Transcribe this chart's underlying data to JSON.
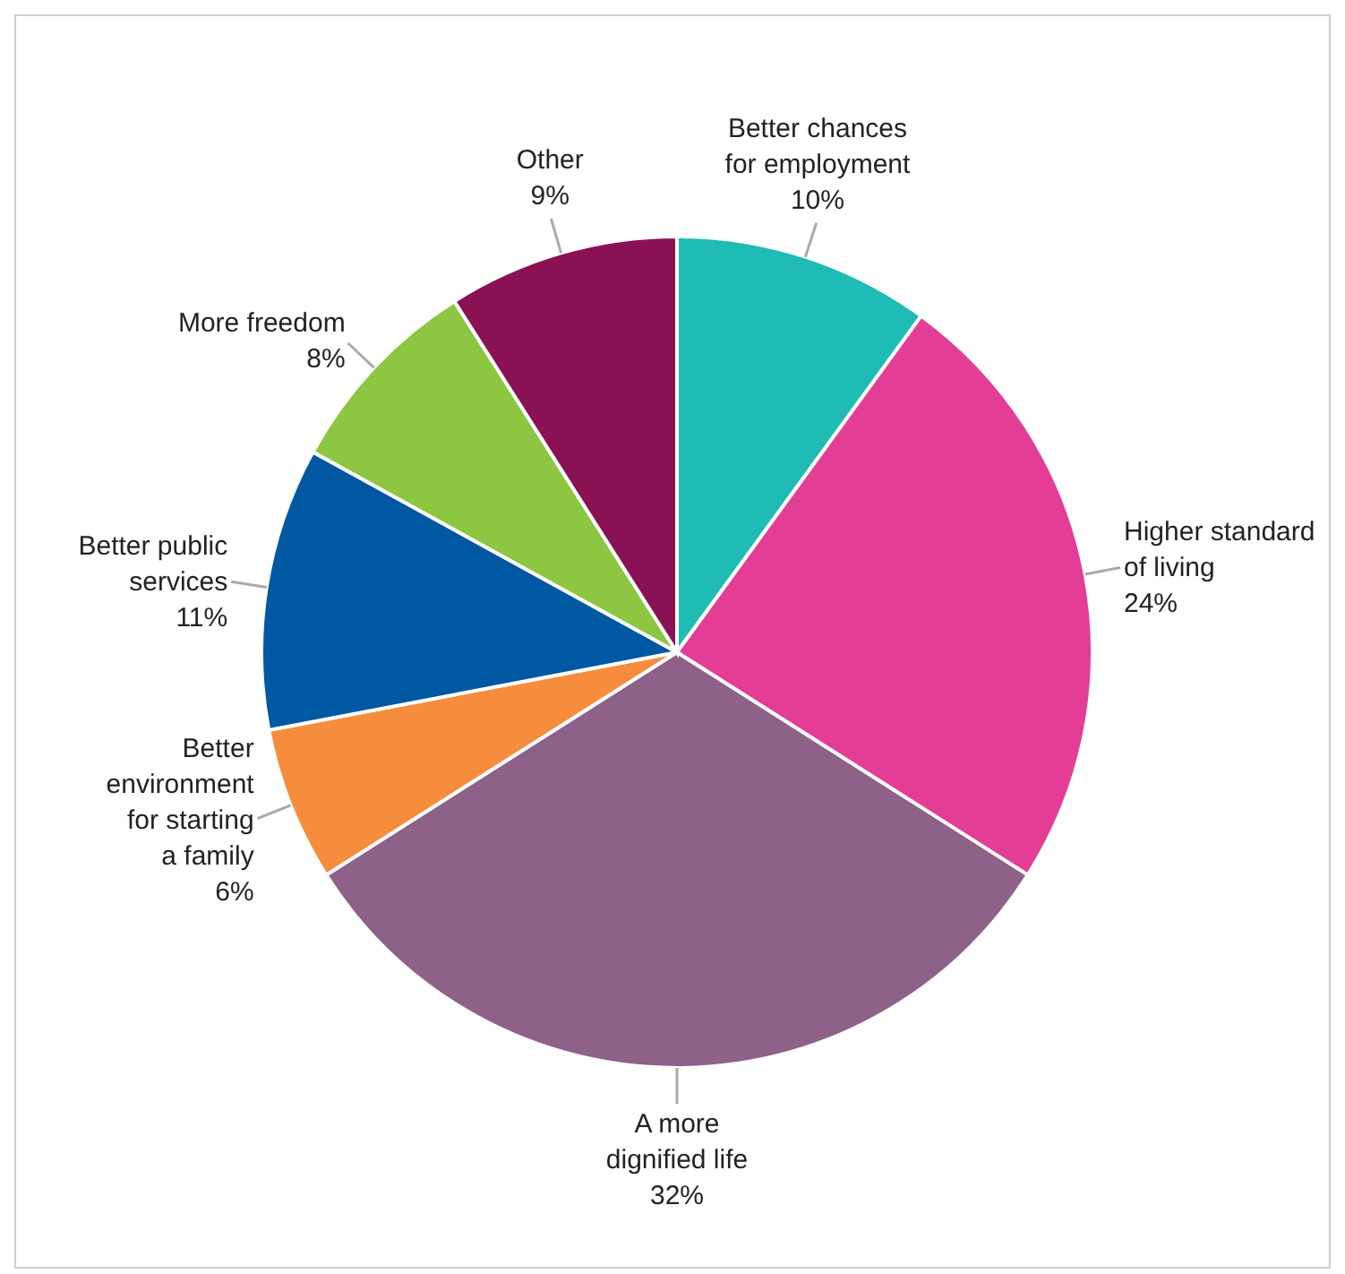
{
  "chart_data": {
    "type": "pie",
    "categories": [
      "Better chances for employment",
      "Higher standard of living",
      "A more dignified life",
      "Better environment for starting a family",
      "Better public services",
      "More freedom",
      "Other"
    ],
    "values": [
      10,
      24,
      32,
      6,
      11,
      8,
      9
    ],
    "value_labels": [
      "10%",
      "24%",
      "32%",
      "6%",
      "11%",
      "8%",
      "9%"
    ],
    "colors": [
      "#1fbcb5",
      "#e43d96",
      "#8e6189",
      "#f58d3d",
      "#0058a3",
      "#8dc641",
      "#8a1153"
    ]
  }
}
